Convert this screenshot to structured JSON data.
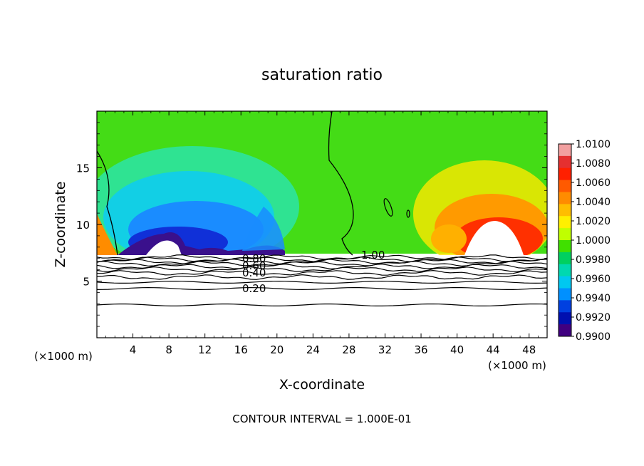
{
  "chart_data": {
    "type": "heatmap",
    "title": "saturation ratio",
    "xlabel": "X-coordinate",
    "ylabel": "Z-coordinate",
    "x_unit_left": "(×1000 m)",
    "x_unit_right": "(×1000 m)",
    "xlim": [
      0,
      50
    ],
    "ylim": [
      0,
      20
    ],
    "x_ticks": [
      4,
      8,
      12,
      16,
      20,
      24,
      28,
      32,
      36,
      40,
      44,
      48
    ],
    "y_ticks": [
      5,
      10,
      15
    ],
    "colorbar": {
      "min": 0.99,
      "max": 1.01,
      "labels": [
        "1.0100",
        "1.0080",
        "1.0060",
        "1.0040",
        "1.0020",
        "1.0000",
        "0.9980",
        "0.9960",
        "0.9940",
        "0.9920",
        "0.9900"
      ],
      "colors": [
        "#f2a0a0",
        "#e53030",
        "#ff2000",
        "#ff5a00",
        "#ff8c00",
        "#ffbe00",
        "#fff000",
        "#c0ff00",
        "#40e000",
        "#00d060",
        "#00d8b0",
        "#00c8f0",
        "#0090ff",
        "#0040e0",
        "#0010b0",
        "#400080"
      ]
    },
    "contour_labels": [
      "0.80",
      "0.60",
      "0.40",
      "0.20",
      "1.00"
    ],
    "contour_levels": [
      0.2,
      0.4,
      0.6,
      0.8,
      1.0
    ],
    "footnote": "CONTOUR INTERVAL = 1.000E-01"
  }
}
